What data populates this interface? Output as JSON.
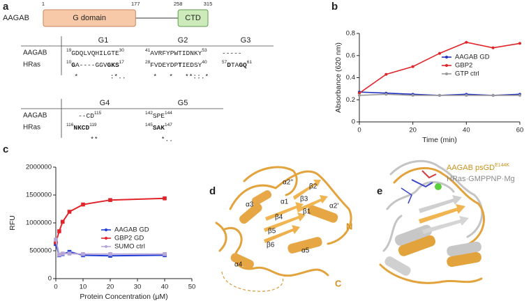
{
  "panel_a": {
    "label": "a",
    "protein": "AAGAB",
    "domains": [
      {
        "name": "G domain",
        "start": 1,
        "end": 177,
        "fill": "#f7c9a8",
        "stroke": "#c58560"
      },
      {
        "name": "CTD",
        "start": 258,
        "end": 315,
        "fill": "#cdeabb",
        "stroke": "#5f9c4c"
      }
    ],
    "blocks": [
      {
        "headers": [
          "G1",
          "G2",
          "G3"
        ],
        "rows": [
          {
            "name": "AAGAB",
            "cells": [
              [
                {
                  "s": "19"
                },
                {
                  "t": "GDQLVQHILGTE"
                },
                {
                  "s": "30"
                }
              ],
              [
                {
                  "s": "41"
                },
                {
                  "t": "AVRFYPWTIDNKY"
                },
                {
                  "s": "53"
                }
              ],
              [
                {
                  "t": "-----"
                }
              ]
            ]
          },
          {
            "name": "HRas",
            "cells": [
              [
                {
                  "s": "10"
                },
                {
                  "b": "G"
                },
                {
                  "t": "A----GGV"
                },
                {
                  "b": "GKS"
                },
                {
                  "s": "17"
                }
              ],
              [
                {
                  "s": "28"
                },
                {
                  "t": "FVDEYDP"
                },
                {
                  "b": "T"
                },
                {
                  "t": "IEDSY"
                },
                {
                  "s": "40"
                }
              ],
              [
                {
                  "s": "57"
                },
                {
                  "b": "D"
                },
                {
                  "t": "TA"
                },
                {
                  "b": "GQ"
                },
                {
                  "s": "61"
                }
              ]
            ]
          }
        ],
        "consensus": [
          "  *        :*..",
          "  *   *   **::.*",
          ""
        ]
      },
      {
        "headers": [
          "G4",
          "G5"
        ],
        "rows": [
          {
            "name": "AAGAB",
            "cells": [
              [
                {
                  "t": "   --CD"
                },
                {
                  "s": "115"
                }
              ],
              [
                {
                  "s": "142"
                },
                {
                  "t": "SPE"
                },
                {
                  "s": "144"
                }
              ]
            ]
          },
          {
            "name": "HRas",
            "cells": [
              [
                {
                  "s": "116"
                },
                {
                  "b": "NKCD"
                },
                {
                  "s": "119"
                }
              ],
              [
                {
                  "s": "145"
                },
                {
                  "b": "SAK"
                },
                {
                  "s": "147"
                }
              ]
            ]
          }
        ],
        "consensus": [
          "      **",
          "    *.."
        ]
      }
    ]
  },
  "chart_data": [
    {
      "type": "line",
      "label": "b",
      "xlabel": "Time (min)",
      "ylabel": "Absorbance (620 nm)",
      "x": [
        0,
        10,
        20,
        30,
        40,
        50,
        60
      ],
      "xlim": [
        0,
        60
      ],
      "xticks": [
        0,
        20,
        40,
        60
      ],
      "ylim": [
        0,
        0.8
      ],
      "yticks": [
        0,
        0.2,
        0.4,
        0.6,
        0.8
      ],
      "legend": "upper right",
      "series": [
        {
          "name": "AAGAB GD",
          "color": "#1f2fbf",
          "values": [
            0.27,
            0.26,
            0.25,
            0.24,
            0.25,
            0.24,
            0.25
          ]
        },
        {
          "name": "GBP2",
          "color": "#e0242a",
          "values": [
            0.26,
            0.43,
            0.5,
            0.62,
            0.72,
            0.67,
            0.71
          ]
        },
        {
          "name": "GTP ctrl",
          "color": "#9a9a9a",
          "values": [
            0.24,
            0.25,
            0.24,
            0.24,
            0.24,
            0.24,
            0.24
          ]
        }
      ]
    },
    {
      "type": "line",
      "label": "c",
      "xlabel": "Protein Concentration (μM)",
      "ylabel": "RFU",
      "x": [
        0,
        1.25,
        2.5,
        5,
        10,
        20,
        40
      ],
      "xlim": [
        0,
        50
      ],
      "xticks": [
        0,
        10,
        20,
        30,
        40,
        50
      ],
      "ylim": [
        0,
        2000000
      ],
      "yticks": [
        0,
        500000,
        1000000,
        1500000,
        2000000
      ],
      "legend": "center right",
      "series": [
        {
          "name": "AAGAB GD",
          "color": "#1f3fd6",
          "values": [
            620000,
            420000,
            440000,
            480000,
            420000,
            410000,
            420000
          ]
        },
        {
          "name": "GBP2 GD",
          "color": "#e0242a",
          "values": [
            650000,
            850000,
            1020000,
            1200000,
            1330000,
            1410000,
            1440000
          ]
        },
        {
          "name": "SUMO ctrl",
          "color": "#b9a6d8",
          "values": [
            700000,
            430000,
            450000,
            450000,
            440000,
            440000,
            440000
          ]
        }
      ]
    }
  ],
  "panel_d": {
    "label": "d",
    "labels": [
      "α2''",
      "β2",
      "β3",
      "α1",
      "β1",
      "α3",
      "β4",
      "α2'",
      "β5",
      "β6",
      "α5",
      "α4",
      "N",
      "C"
    ]
  },
  "panel_e": {
    "label": "e",
    "legend": [
      {
        "text": "AAGAB psGD",
        "sup": "E144K",
        "color": "#c8901a"
      },
      {
        "text": "HRas·GMPPNP·Mg",
        "color": "#8a8a8a"
      }
    ]
  }
}
